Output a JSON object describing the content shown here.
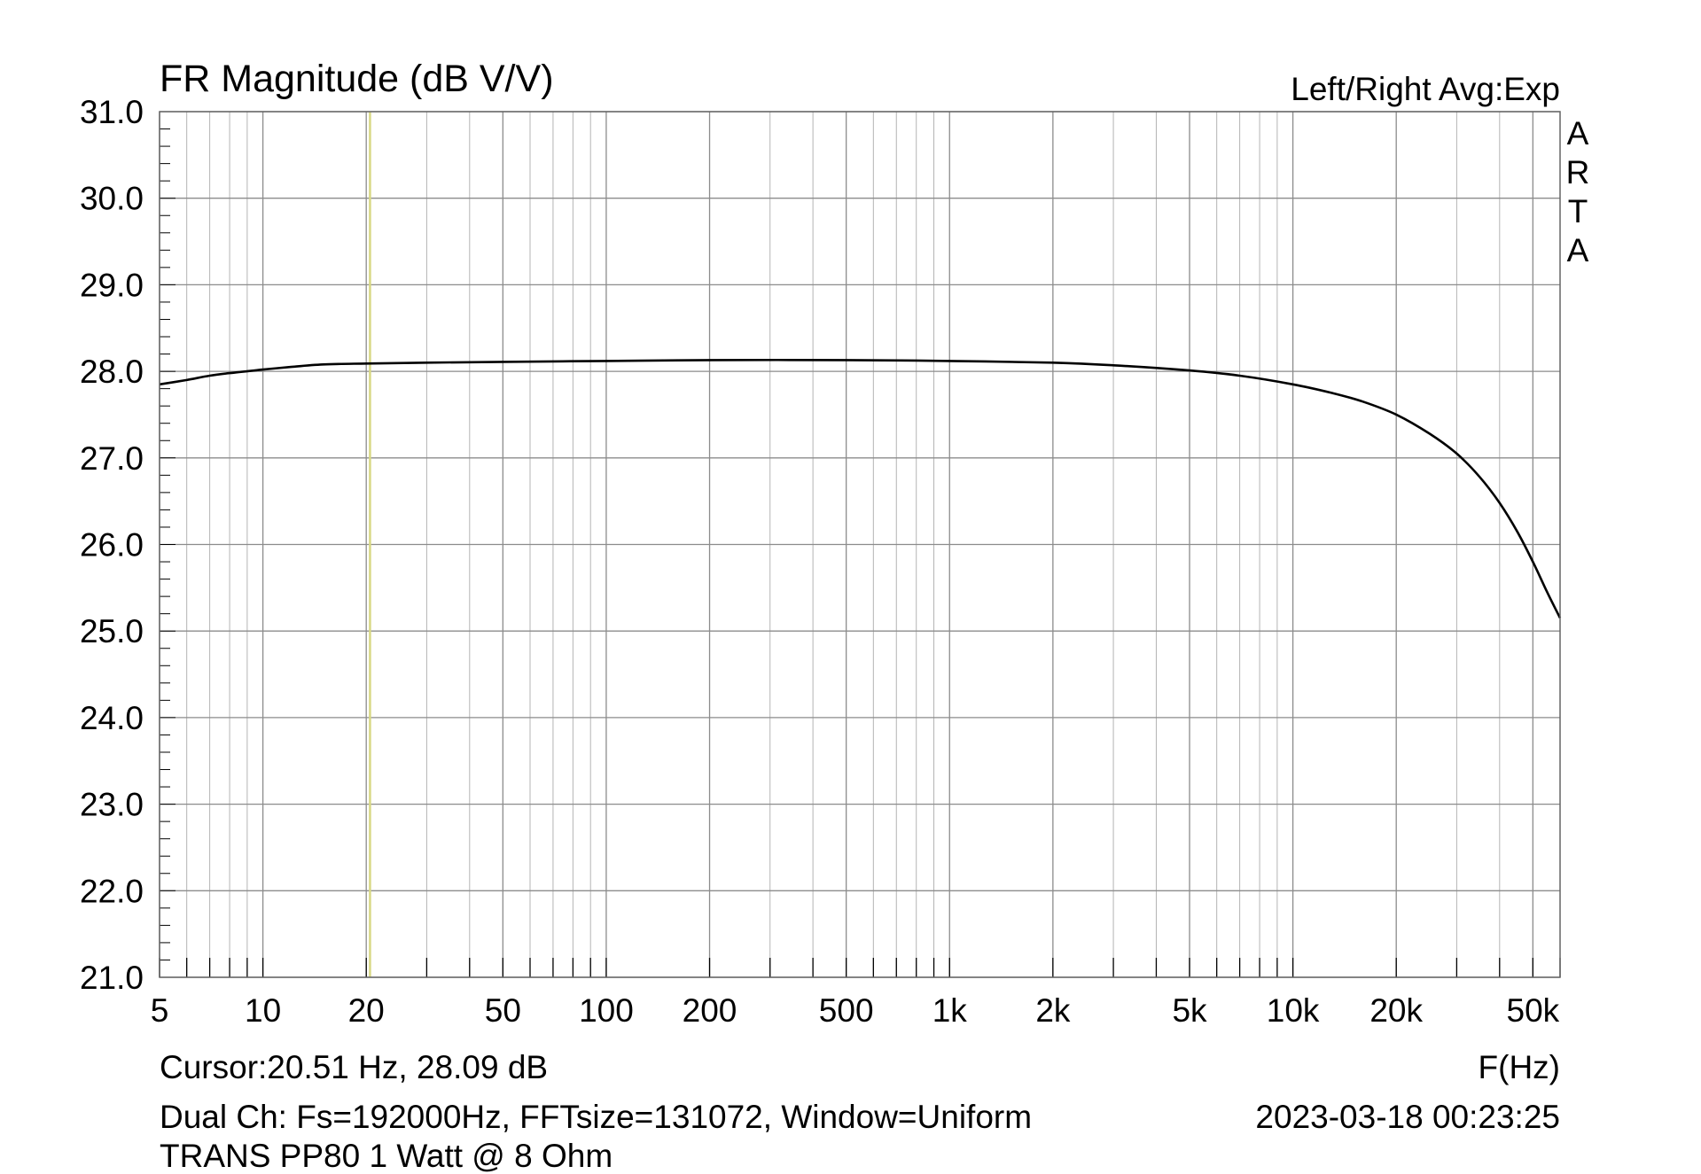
{
  "chart_data": {
    "type": "line",
    "title": "FR Magnitude (dB V/V)",
    "mode_label": "Left/Right  Avg:Exp",
    "brand_letters": [
      "A",
      "R",
      "T",
      "A"
    ],
    "xlabel": "F(Hz)",
    "ylabel": "",
    "x_scale": "log",
    "xlim": [
      5,
      60000
    ],
    "ylim": [
      21.0,
      31.0
    ],
    "grid": true,
    "x_ticks": [
      {
        "value": 5,
        "label": "5"
      },
      {
        "value": 10,
        "label": "10"
      },
      {
        "value": 20,
        "label": "20"
      },
      {
        "value": 50,
        "label": "50"
      },
      {
        "value": 100,
        "label": "100"
      },
      {
        "value": 200,
        "label": "200"
      },
      {
        "value": 500,
        "label": "500"
      },
      {
        "value": 1000,
        "label": "1k"
      },
      {
        "value": 2000,
        "label": "2k"
      },
      {
        "value": 5000,
        "label": "5k"
      },
      {
        "value": 10000,
        "label": "10k"
      },
      {
        "value": 20000,
        "label": "20k"
      },
      {
        "value": 50000,
        "label": "50k"
      }
    ],
    "y_ticks": [
      {
        "value": 31,
        "label": "31.0"
      },
      {
        "value": 30,
        "label": "30.0"
      },
      {
        "value": 29,
        "label": "29.0"
      },
      {
        "value": 28,
        "label": "28.0"
      },
      {
        "value": 27,
        "label": "27.0"
      },
      {
        "value": 26,
        "label": "26.0"
      },
      {
        "value": 25,
        "label": "25.0"
      },
      {
        "value": 24,
        "label": "24.0"
      },
      {
        "value": 23,
        "label": "23.0"
      },
      {
        "value": 22,
        "label": "22.0"
      },
      {
        "value": 21,
        "label": "21.0"
      }
    ],
    "cursor_frequency": 20.51,
    "series": [
      {
        "color": "#000000",
        "x": [
          5,
          6,
          7,
          8,
          10,
          12,
          15,
          20,
          30,
          50,
          100,
          200,
          500,
          1000,
          2000,
          3000,
          5000,
          7000,
          10000,
          13000,
          16000,
          20000,
          25000,
          30000,
          35000,
          40000,
          45000,
          50000,
          55000,
          60000
        ],
        "y": [
          27.85,
          27.9,
          27.95,
          27.98,
          28.02,
          28.05,
          28.08,
          28.09,
          28.1,
          28.11,
          28.12,
          28.13,
          28.13,
          28.12,
          28.1,
          28.07,
          28.01,
          27.95,
          27.85,
          27.75,
          27.65,
          27.5,
          27.28,
          27.05,
          26.78,
          26.48,
          26.15,
          25.8,
          25.45,
          25.15
        ]
      }
    ]
  },
  "info": {
    "cursor": "Cursor:20.51 Hz, 28.09 dB",
    "measurement": "Dual Ch: Fs=192000Hz, FFTsize=131072, Window=Uniform",
    "timestamp": "2023-03-18  00:23:25",
    "description": "TRANS PP80  1 Watt @ 8 Ohm"
  },
  "colors": {
    "grid": "#b4b4b4",
    "major_grid": "#8c8c8c",
    "frame": "#646464",
    "cursor": "#d8d884",
    "trace": "#000000"
  }
}
